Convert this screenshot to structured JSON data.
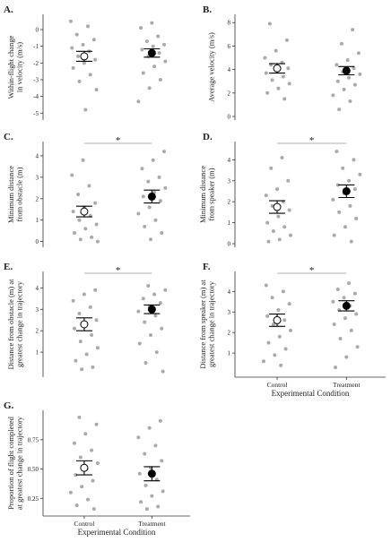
{
  "chart_data": [
    {
      "type": "strip",
      "title": "A.",
      "ylabel": [
        "Within-flight change",
        "in velocity (m/s)"
      ],
      "ylim": [
        -5.2,
        0.7
      ],
      "yticks": [
        -5,
        -4,
        -3,
        -2,
        -1,
        0
      ],
      "groups": [
        [
          0.5,
          0.2,
          -0.3,
          -0.6,
          -0.9,
          -1.1,
          -1.3,
          -1.6,
          -1.8,
          -2.0,
          -2.3,
          -2.7,
          -3.1,
          -3.6,
          -4.8
        ],
        [
          0.4,
          0.1,
          -0.4,
          -0.7,
          -0.9,
          -1.0,
          -1.2,
          -1.4,
          -1.6,
          -1.9,
          -2.2,
          -2.6,
          -3.0,
          -3.5,
          -4.3
        ]
      ],
      "means": [
        -1.6,
        -1.4
      ],
      "errors": [
        0.3,
        0.25
      ]
    },
    {
      "type": "strip",
      "title": "B.",
      "ylabel": [
        "Average velocity (m/s)"
      ],
      "ylim": [
        0,
        8.4
      ],
      "yticks": [
        0,
        2,
        4,
        6,
        8
      ],
      "groups": [
        [
          7.9,
          6.5,
          5.6,
          5.0,
          4.6,
          4.4,
          4.1,
          3.9,
          3.7,
          3.4,
          3.1,
          2.8,
          2.4,
          2.0,
          1.5
        ],
        [
          7.4,
          6.2,
          5.4,
          4.8,
          4.4,
          4.1,
          3.8,
          3.6,
          3.3,
          3.0,
          2.7,
          2.3,
          1.8,
          1.3,
          0.6
        ]
      ],
      "means": [
        4.1,
        3.9
      ],
      "errors": [
        0.4,
        0.35
      ]
    },
    {
      "type": "strip",
      "title": "C.",
      "ylabel": [
        "Minimum distance",
        "from obstacle (m)"
      ],
      "ylim": [
        -0.1,
        4.5
      ],
      "yticks": [
        0,
        1,
        2,
        3,
        4
      ],
      "significance": "*",
      "groups": [
        [
          3.8,
          3.1,
          2.6,
          2.2,
          1.8,
          1.6,
          1.4,
          1.2,
          1.0,
          0.8,
          0.6,
          0.4,
          0.2,
          0.1,
          0.0
        ],
        [
          4.2,
          3.8,
          3.4,
          3.0,
          2.8,
          2.5,
          2.3,
          2.1,
          1.9,
          1.6,
          1.3,
          1.0,
          0.7,
          0.4,
          0.1
        ]
      ],
      "means": [
        1.4,
        2.1
      ],
      "errors": [
        0.25,
        0.3
      ]
    },
    {
      "type": "strip",
      "title": "D.",
      "ylabel": [
        "Minimum distance",
        "from speaker (m)"
      ],
      "ylim": [
        0,
        4.7
      ],
      "yticks": [
        0,
        1,
        2,
        3,
        4
      ],
      "significance": "*",
      "groups": [
        [
          4.1,
          3.6,
          3.0,
          2.6,
          2.3,
          2.0,
          1.8,
          1.6,
          1.3,
          1.0,
          0.8,
          0.6,
          0.4,
          0.2,
          0.1
        ],
        [
          4.4,
          4.0,
          3.6,
          3.3,
          3.0,
          2.8,
          2.6,
          2.4,
          2.1,
          1.8,
          1.5,
          1.2,
          0.8,
          0.4,
          0.1
        ]
      ],
      "means": [
        1.75,
        2.5
      ],
      "errors": [
        0.3,
        0.3
      ]
    },
    {
      "type": "strip",
      "title": "E.",
      "ylabel": [
        "Distance from obstacle (m) at",
        "greatest change in trajectory"
      ],
      "ylim": [
        0,
        4.6
      ],
      "yticks": [
        1,
        2,
        3,
        4
      ],
      "significance": "*",
      "groups": [
        [
          3.9,
          3.7,
          3.4,
          3.1,
          2.8,
          2.5,
          2.3,
          2.1,
          1.8,
          1.5,
          1.2,
          0.9,
          0.6,
          0.3,
          0.2
        ],
        [
          4.1,
          3.9,
          3.7,
          3.5,
          3.3,
          3.1,
          2.9,
          2.7,
          2.4,
          2.1,
          1.8,
          1.4,
          1.0,
          0.5,
          0.1
        ]
      ],
      "means": [
        2.3,
        3.0
      ],
      "errors": [
        0.3,
        0.2
      ]
    },
    {
      "type": "strip",
      "title": "F.",
      "ylabel": [
        "Distance from speaker (m) at",
        "greatest change in trajectory"
      ],
      "ylim": [
        0,
        4.8
      ],
      "yticks": [
        1,
        2,
        3,
        4
      ],
      "significance": "*",
      "categories": [
        "Control",
        "Treatment"
      ],
      "xlabel": "Experimental Condition",
      "groups": [
        [
          4.3,
          4.0,
          3.7,
          3.4,
          3.1,
          2.8,
          2.6,
          2.4,
          2.1,
          1.8,
          1.5,
          1.2,
          0.9,
          0.6,
          0.4
        ],
        [
          4.4,
          4.1,
          3.9,
          3.7,
          3.5,
          3.3,
          3.1,
          2.9,
          2.7,
          2.4,
          2.1,
          1.7,
          1.3,
          0.8,
          0.3
        ]
      ],
      "means": [
        2.6,
        3.3
      ],
      "errors": [
        0.3,
        0.25
      ]
    },
    {
      "type": "strip",
      "title": "G.",
      "ylabel": [
        "Proportion of flight completed",
        "at greatest change in trajectory"
      ],
      "ylim": [
        0.13,
        0.97
      ],
      "yticks": [
        {
          "value": 0.25,
          "label": "0.25"
        },
        {
          "value": 0.5,
          "label": "0.50"
        },
        {
          "value": 0.75,
          "label": "0.75"
        }
      ],
      "categories": [
        "Control",
        "Treatment"
      ],
      "xlabel": "Experimental Condition",
      "groups": [
        [
          0.94,
          0.88,
          0.8,
          0.72,
          0.66,
          0.6,
          0.55,
          0.5,
          0.45,
          0.4,
          0.35,
          0.3,
          0.24,
          0.19,
          0.16
        ],
        [
          0.91,
          0.85,
          0.77,
          0.7,
          0.63,
          0.57,
          0.51,
          0.46,
          0.41,
          0.36,
          0.31,
          0.27,
          0.22,
          0.18,
          0.16
        ]
      ],
      "means": [
        0.51,
        0.46
      ],
      "errors": [
        0.06,
        0.06
      ]
    }
  ]
}
